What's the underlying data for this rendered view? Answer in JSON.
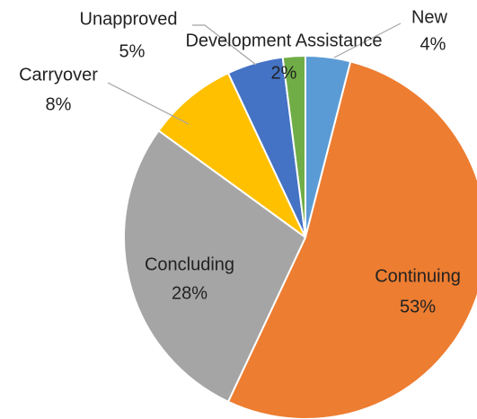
{
  "chart_data": {
    "type": "pie",
    "categories": [
      "New",
      "Continuing",
      "Concluding",
      "Carryover",
      "Unapproved",
      "Development Assistance"
    ],
    "values": [
      4,
      53,
      28,
      8,
      5,
      2
    ],
    "value_labels": [
      "4%",
      "53%",
      "28%",
      "8%",
      "5%",
      "2%"
    ],
    "colors": [
      "#5b9bd5",
      "#ed7d31",
      "#a5a5a5",
      "#ffc000",
      "#4472c4",
      "#70ad47"
    ]
  }
}
